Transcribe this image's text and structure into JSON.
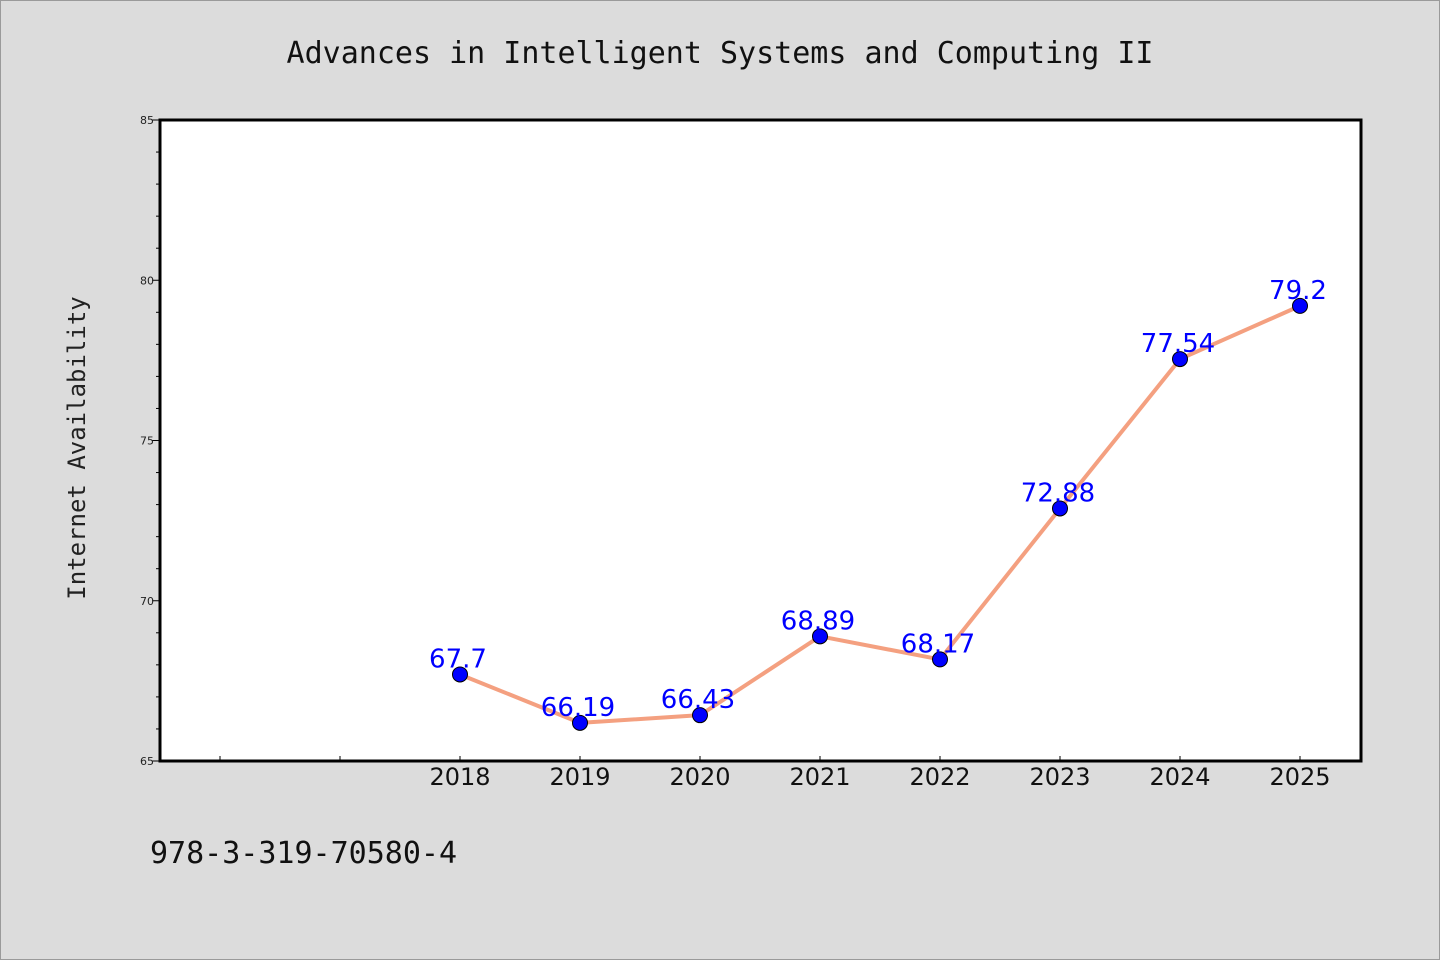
{
  "chart_data": {
    "type": "line",
    "title": "Advances in Intelligent Systems and Computing II",
    "xlabel": "",
    "ylabel": "Internet Availability",
    "categories": [
      "2018",
      "2019",
      "2020",
      "2021",
      "2022",
      "2023",
      "2024",
      "2025"
    ],
    "series": [
      {
        "values": [
          67.7,
          66.19,
          66.43,
          68.89,
          68.17,
          72.88,
          77.54,
          79.2
        ],
        "data_labels": [
          "67.7",
          "66.19",
          "66.43",
          "68.89",
          "68.17",
          "72.88",
          "77.54",
          "79.2"
        ]
      }
    ],
    "ylim": [
      65,
      85
    ],
    "yticks": [
      "65",
      "70",
      "75",
      "80",
      "85"
    ],
    "grid": false,
    "legend": "none",
    "colors": {
      "line": "#f4a080",
      "marker": "#0000ff",
      "label": "#0000ff",
      "background": "#dcdcdc",
      "plot_background": "#ffffff"
    }
  },
  "footer": {
    "isbn": "978-3-319-70580-4"
  }
}
